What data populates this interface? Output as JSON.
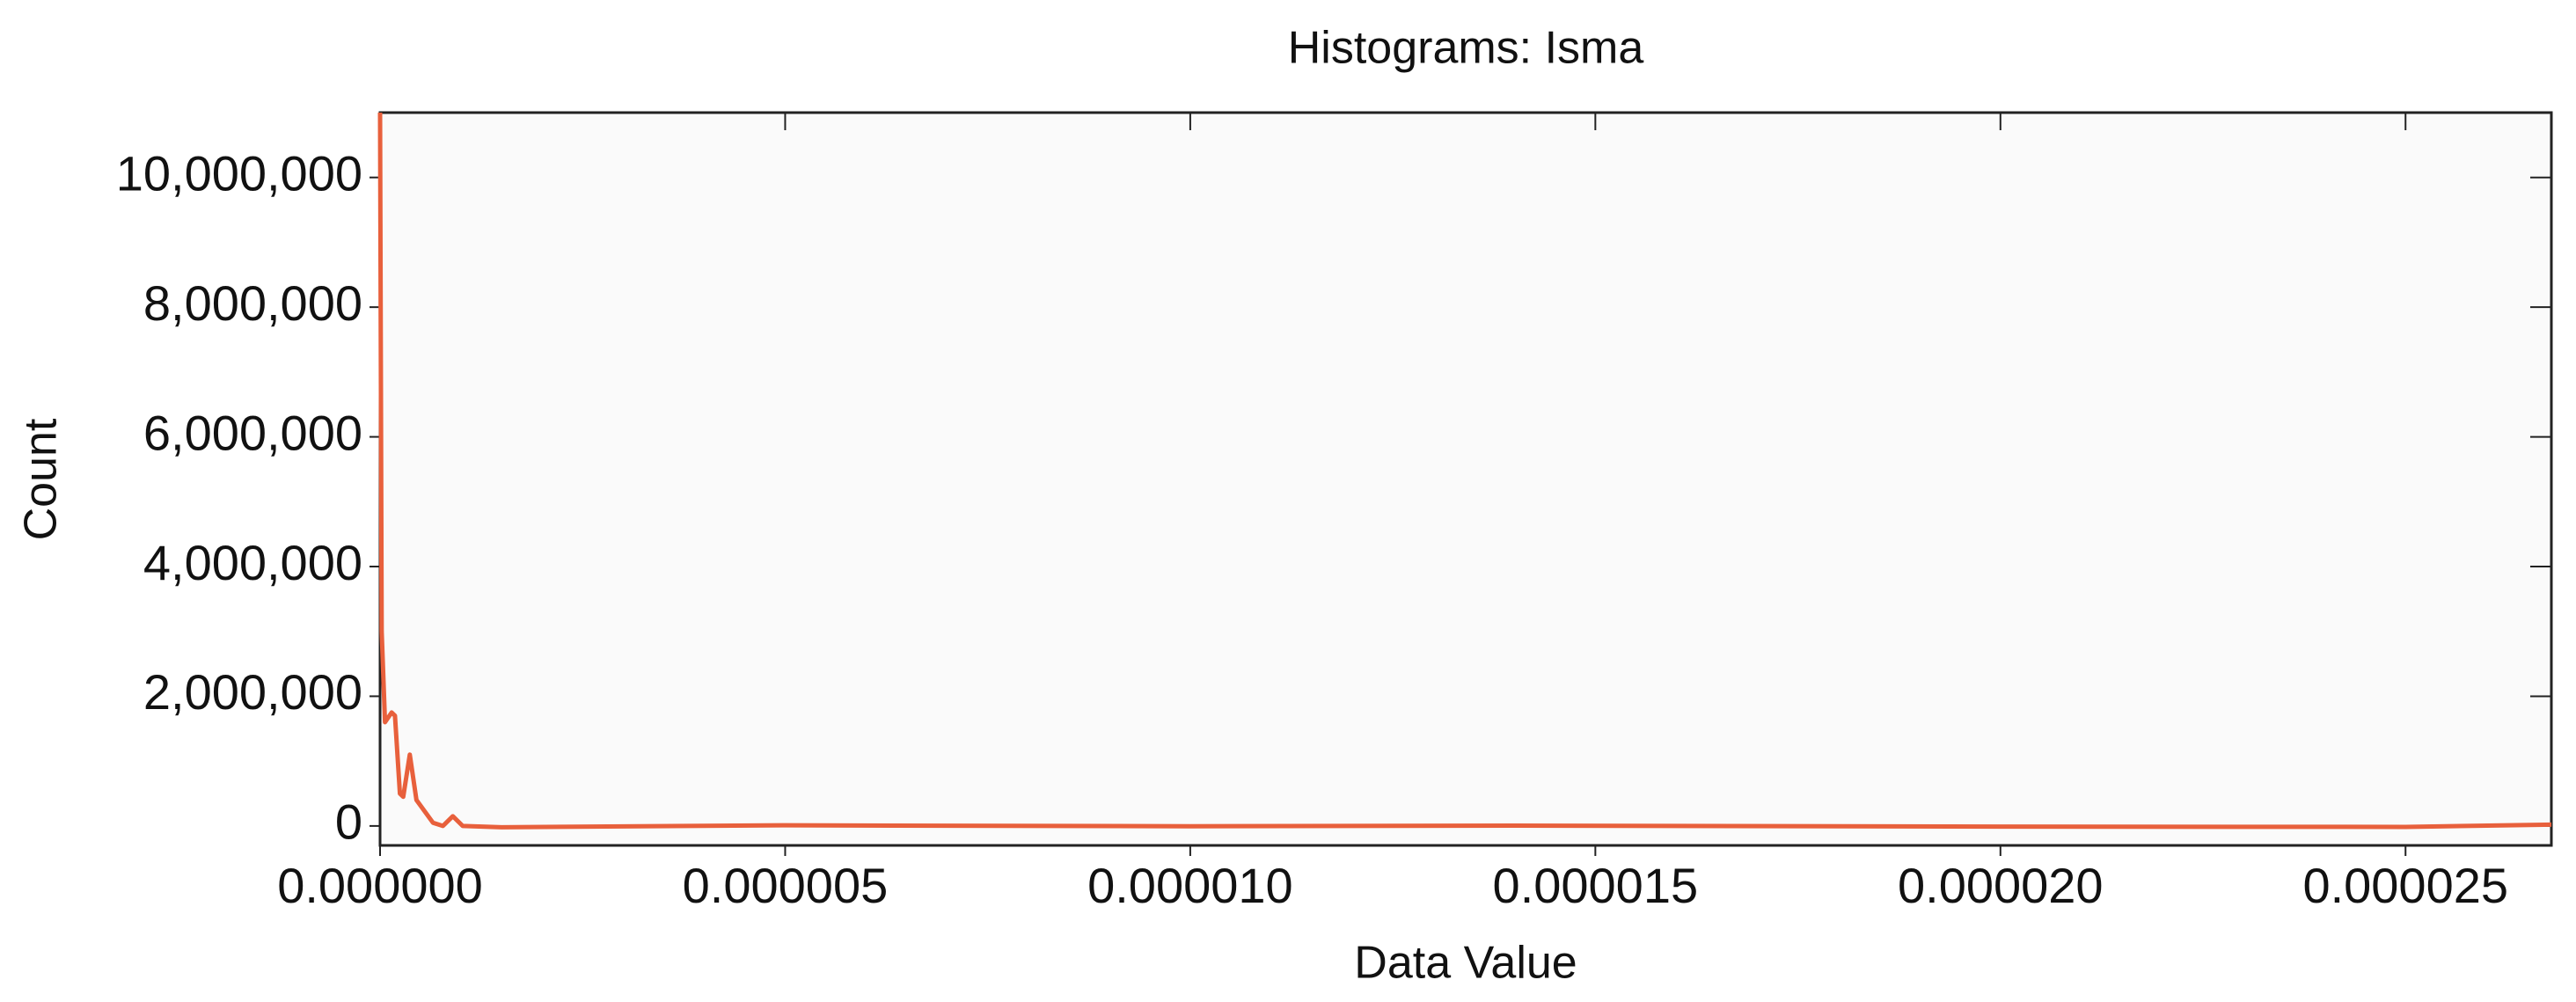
{
  "chart_data": {
    "type": "line",
    "title": "Histograms: Isma",
    "xlabel": "Data Value",
    "ylabel": "Count",
    "x": [
      0,
      2e-08,
      6.1e-08,
      1.43e-07,
      1.84e-07,
      2.45e-07,
      2.86e-07,
      3.67e-07,
      4.49e-07,
      6.53e-07,
      7.76e-07,
      8.98e-07,
      1.02e-06,
      1.5e-06,
      5e-06,
      1e-05,
      1.4e-05,
      2e-05,
      2.5e-05,
      2.68e-05
    ],
    "values": [
      11000000,
      3000000,
      1600000,
      1750000,
      1700000,
      500000,
      450000,
      1100000,
      400000,
      50000,
      0,
      150000,
      0,
      -20000,
      10000,
      -5000,
      5000,
      -10000,
      -15000,
      20000
    ],
    "color": "#e8603c",
    "xlim": [
      0,
      2.68e-05
    ],
    "ylim": [
      -300000,
      11000000
    ],
    "xticks": [
      {
        "value": 0,
        "label": "0.000000"
      },
      {
        "value": 5e-06,
        "label": "0.000005"
      },
      {
        "value": 1e-05,
        "label": "0.000010"
      },
      {
        "value": 1.5e-05,
        "label": "0.000015"
      },
      {
        "value": 2e-05,
        "label": "0.000020"
      },
      {
        "value": 2.5e-05,
        "label": "0.000025"
      }
    ],
    "yticks": [
      0,
      {
        "value": 2000000,
        "label": "2,000,000"
      },
      {
        "value": 4000000,
        "label": "4,000,000"
      },
      {
        "value": 6000000,
        "label": "6,000,000"
      },
      {
        "value": 8000000,
        "label": "8,000,000"
      },
      {
        "value": 10000000,
        "label": "10,000,000"
      }
    ],
    "grid": false
  }
}
